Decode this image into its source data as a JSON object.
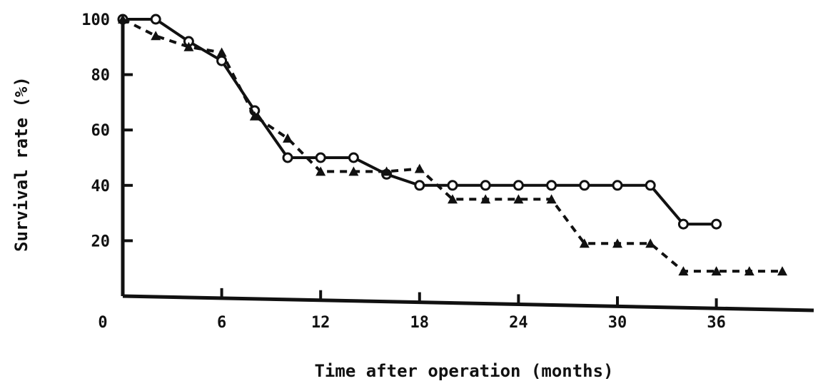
{
  "chart_data": {
    "type": "line",
    "title": "",
    "xlabel": "Time after operation (months)",
    "ylabel": "Survival rate (%)",
    "xlim": [
      0,
      42
    ],
    "ylim": [
      0,
      100
    ],
    "x_ticks": [
      0,
      6,
      12,
      18,
      24,
      30,
      36
    ],
    "x_tick_labels": [
      "0",
      "6",
      "12",
      "18",
      "24",
      "30",
      "36"
    ],
    "y_ticks": [
      20,
      40,
      60,
      80,
      100
    ],
    "y_tick_labels": [
      "20",
      "40",
      "60",
      "80",
      "100"
    ],
    "grid": false,
    "legend": "none",
    "series": [
      {
        "style": "solid",
        "marker": "circle",
        "color": "#111111",
        "x": [
          0,
          2,
          4,
          6,
          8,
          10,
          12,
          14,
          16,
          18,
          20,
          22,
          24,
          26,
          28,
          30,
          32,
          34,
          36
        ],
        "y": [
          100,
          100,
          92,
          85,
          67,
          50,
          50,
          50,
          44,
          40,
          40,
          40,
          40,
          40,
          40,
          40,
          40,
          26,
          26
        ]
      },
      {
        "style": "dashed",
        "marker": "triangle",
        "color": "#111111",
        "x": [
          0,
          2,
          4,
          6,
          8,
          10,
          12,
          14,
          16,
          18,
          20,
          22,
          24,
          26,
          28,
          30,
          32,
          34,
          36,
          38,
          40
        ],
        "y": [
          100,
          94,
          90,
          88,
          65,
          57,
          45,
          45,
          45,
          46,
          35,
          35,
          35,
          35,
          19,
          19,
          19,
          9,
          9,
          9,
          9
        ]
      }
    ]
  }
}
